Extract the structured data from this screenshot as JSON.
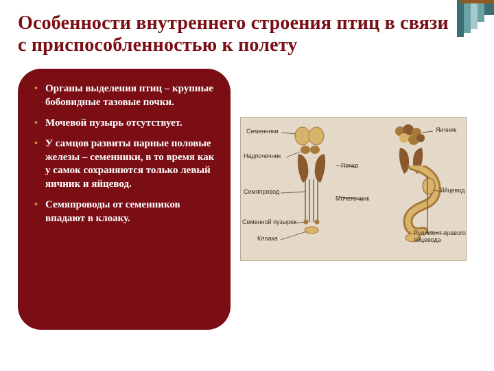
{
  "colors": {
    "title": "#7a0e14",
    "card_bg": "#7a0e14",
    "card_text": "#ffffff",
    "bullet": "#d08a3e",
    "figure_bg": "#e4d9c9",
    "figure_border": "#bda994",
    "label_color": "#3a2e1f",
    "organ_light": "#d8b36a",
    "organ_mid": "#a87a3a",
    "organ_dark": "#6e4a26",
    "kidney": "#8a5a2e",
    "line": "#6a5640",
    "deco_teal_dark": "#3c6f72",
    "deco_teal_mid": "#6aa3a6",
    "deco_teal_light": "#a6c9cb",
    "deco_accent": "#8f5a23"
  },
  "title": "Особенности внутреннего строения  птиц в связи с приспособленностью к полету",
  "bullets": [
    "Органы выделения птиц – крупные бобовидные тазовые почки.",
    " Мочевой пузырь отсутствует.",
    "У самцов развиты парные половые железы – семенники, в то время как у самок сохраняются только левый яичник и яйцевод.",
    "Семяпроводы от семенников впадают в клоаку."
  ],
  "figure": {
    "labels": {
      "semenniki": "Семенники",
      "nadpochechnik": "Надпочечник",
      "pochka": "Почка",
      "semyaprovod": "Семяпровод",
      "mochetochnik": "Мочеточник",
      "semennoy_puzyrek": "Семенной пузырек",
      "kloaka": "Клоака",
      "yaichnik": "Яичник",
      "yaitsevod": "Яйцевод",
      "rudiment": "Рудимент правого яйцевода"
    }
  }
}
